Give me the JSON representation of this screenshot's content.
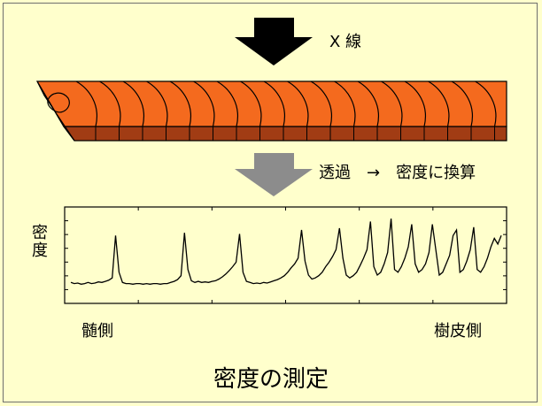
{
  "labels": {
    "xray": "X 線",
    "transmission": "透過　→　密度に換算",
    "density_axis": "密度",
    "pith_side": "髄側",
    "bark_side": "樹皮側",
    "caption": "密度の測定"
  },
  "colors": {
    "background": "#ffffcc",
    "wood_top": "#f46a1e",
    "wood_side": "#a13c14",
    "arrow_black": "#000000",
    "arrow_gray": "#8c8c8c",
    "frame": "#6e6e6e"
  },
  "icons": {
    "xray_arrow": "down-arrow-black",
    "conversion_arrow": "down-arrow-gray",
    "right_arrow": "→"
  },
  "chart_data": {
    "type": "line",
    "title": "",
    "xlabel": "",
    "ylabel": "密度",
    "x_start_label": "髄側",
    "x_end_label": "樹皮側",
    "grid": false,
    "series": [
      {
        "values": [
          0.12,
          0.1,
          0.11,
          0.09,
          0.1,
          0.12,
          0.1,
          0.11,
          0.13,
          0.12,
          0.14,
          0.16,
          0.2,
          0.95,
          0.3,
          0.12,
          0.1,
          0.1,
          0.09,
          0.1,
          0.1,
          0.09,
          0.1,
          0.09,
          0.1,
          0.1,
          0.09,
          0.1,
          0.1,
          0.12,
          0.14,
          0.17,
          0.24,
          1.0,
          0.35,
          0.15,
          0.12,
          0.14,
          0.12,
          0.13,
          0.12,
          0.14,
          0.15,
          0.18,
          0.22,
          0.27,
          0.33,
          0.4,
          0.48,
          0.98,
          0.3,
          0.14,
          0.12,
          0.1,
          0.11,
          0.1,
          0.12,
          0.11,
          0.13,
          0.15,
          0.17,
          0.2,
          0.24,
          0.3,
          0.38,
          0.45,
          0.55,
          1.05,
          0.5,
          0.25,
          0.18,
          0.2,
          0.24,
          0.3,
          0.4,
          0.48,
          0.58,
          0.7,
          1.08,
          0.55,
          0.25,
          0.2,
          0.24,
          0.3,
          0.42,
          0.55,
          0.7,
          1.2,
          0.4,
          0.25,
          0.3,
          0.45,
          0.65,
          1.25,
          0.35,
          0.3,
          0.4,
          0.55,
          0.75,
          1.15,
          0.45,
          0.3,
          0.35,
          0.45,
          0.65,
          1.15,
          0.7,
          0.25,
          0.3,
          0.45,
          0.6,
          0.95,
          1.05,
          0.3,
          0.35,
          0.5,
          0.7,
          1.1,
          0.35,
          0.3,
          0.4,
          0.55,
          0.75,
          0.9,
          0.8,
          0.95
        ]
      }
    ]
  }
}
